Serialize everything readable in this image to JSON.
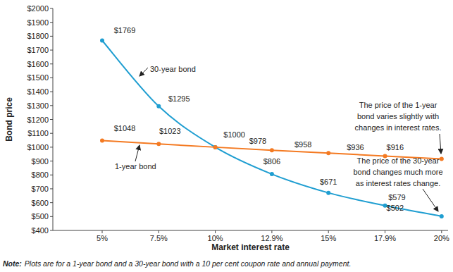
{
  "chart_data": {
    "type": "line",
    "x_label": "Market interest rate",
    "y_label": "Bond price",
    "categories": [
      "5%",
      "7.5%",
      "10%",
      "12.9%",
      "15%",
      "17.9%",
      "20%"
    ],
    "series": [
      {
        "name": "30-year bond",
        "color": "#1f9ed1",
        "marker": "circle",
        "line_style": "solid",
        "values": [
          1769,
          1295,
          1000,
          806,
          671,
          579,
          502
        ],
        "value_labels": [
          "$1769",
          "$1295",
          null,
          "$806",
          "$671",
          "$579",
          "$502"
        ]
      },
      {
        "name": "1-year bond",
        "color": "#f47a22",
        "marker": "circle",
        "line_style": "solid",
        "values": [
          1048,
          1023,
          1000,
          978,
          958,
          936,
          916
        ],
        "value_labels": [
          "$1048",
          "$1023",
          "$1000",
          "$978",
          "$958",
          "$936",
          "$916"
        ]
      }
    ],
    "ylim": [
      400,
      2000
    ],
    "yticks": [
      {
        "value": 400,
        "label": "$400"
      },
      {
        "value": 500,
        "label": "$500"
      },
      {
        "value": 600,
        "label": "$600"
      },
      {
        "value": 700,
        "label": "$700"
      },
      {
        "value": 800,
        "label": "$800"
      },
      {
        "value": 900,
        "label": "$900"
      },
      {
        "value": 1000,
        "label": "$1000"
      },
      {
        "value": 1100,
        "label": "$1100"
      },
      {
        "value": 1200,
        "label": "$1200"
      },
      {
        "value": 1300,
        "label": "$1300"
      },
      {
        "value": 1400,
        "label": "$1400"
      },
      {
        "value": 1500,
        "label": "$1500"
      },
      {
        "value": 1600,
        "label": "$1600"
      },
      {
        "value": 1700,
        "label": "$1700"
      },
      {
        "value": 1800,
        "label": "$1800"
      },
      {
        "value": 1900,
        "label": "$1900"
      },
      {
        "value": 2000,
        "label": "$2000"
      }
    ],
    "grid": false,
    "data_labels": true,
    "annotations": [
      [
        "The price of the 1-year",
        "bond varies slightly with",
        "changes in interest rates."
      ],
      [
        "The price of the 30-year",
        "bond changes much more",
        "as interest rates change."
      ]
    ],
    "note_label": "Note:",
    "note_text": "Plots are for a 1-year bond and a 30-year bond with a 10 per cent coupon rate and annual payment."
  }
}
